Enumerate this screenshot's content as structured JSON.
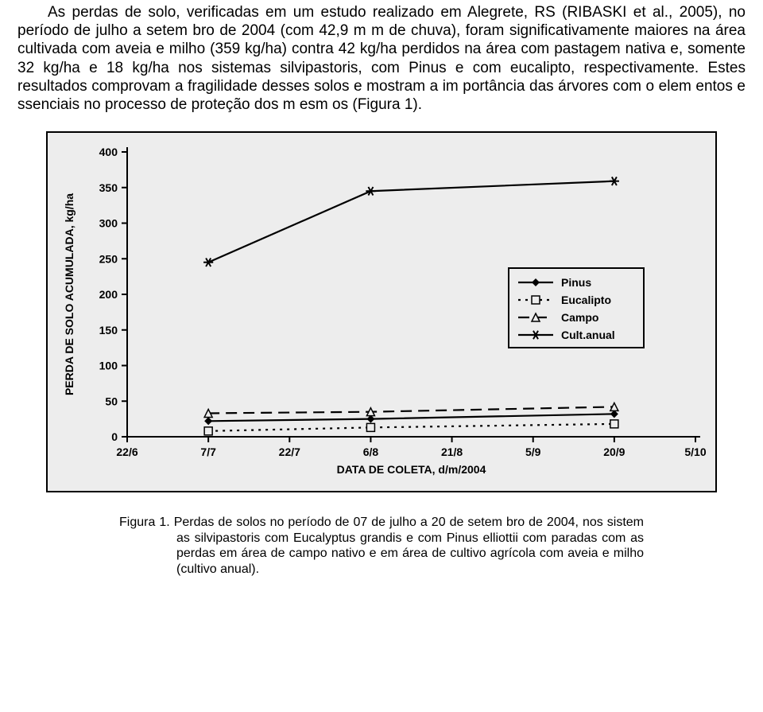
{
  "paragraph": "As perdas de solo, verificadas em um estudo realizado em Alegrete, RS (RIBASKI et al., 2005), no período de julho a setem bro de 2004 (com 42,9 m m de chuva), foram significativamente maiores na área cultivada com aveia e milho (359 kg/ha) contra 42 kg/ha perdidos na área com pastagem nativa e, somente 32 kg/ha e 18 kg/ha nos sistemas silvipastoris, com Pinus e com eucalipto, respectivamente. Estes resultados comprovam a fragilidade desses solos e mostram a im portância das árvores com o elem entos e ssenciais no processo de proteção dos m esm os (Figura 1).",
  "caption": "Figura 1. Perdas de solos no período de 07 de julho a 20 de setem bro de 2004, nos sistem as silvipastoris com Eucalyptus grandis e com Pinus elliottii com paradas com as perdas em área de campo nativo e em área de cultivo agrícola com aveia e milho (cultivo anual).",
  "chart": {
    "type": "line",
    "background_color": "#ededed",
    "border_color": "#000000",
    "axis_color": "#000000",
    "series_color": "#000000",
    "tick_label_fontsize": 14,
    "tick_label_weight": "bold",
    "axis_label_fontsize": 14,
    "axis_label_weight": "bold",
    "legend_fontsize": 14,
    "legend_weight": "bold",
    "y_axis_label": "PERDA DE SOLO ACUMULADA, kg/ha",
    "x_axis_label": "DATA DE COLETA, d/m/2004",
    "y_ticks": [
      0,
      50,
      100,
      150,
      200,
      250,
      300,
      350,
      400
    ],
    "x_categories": [
      "22/6",
      "7/7",
      "22/7",
      "6/8",
      "21/8",
      "5/9",
      "20/9",
      "5/10"
    ],
    "x_index_range": [
      1,
      6
    ],
    "series": [
      {
        "name": "Pinus",
        "label": "Pinus",
        "marker": "diamond",
        "dash": "solid",
        "points": [
          {
            "x": 1,
            "y": 22
          },
          {
            "x": 3,
            "y": 25
          },
          {
            "x": 6,
            "y": 32
          }
        ]
      },
      {
        "name": "Eucalipto",
        "label": "Eucalipto",
        "marker": "square-open",
        "dash": "dot",
        "points": [
          {
            "x": 1,
            "y": 8
          },
          {
            "x": 3,
            "y": 13
          },
          {
            "x": 6,
            "y": 18
          }
        ]
      },
      {
        "name": "Campo",
        "label": "Campo",
        "marker": "triangle-open",
        "dash": "longdash",
        "points": [
          {
            "x": 1,
            "y": 33
          },
          {
            "x": 3,
            "y": 35
          },
          {
            "x": 6,
            "y": 42
          }
        ]
      },
      {
        "name": "Cult.anual",
        "label": "Cult.anual",
        "marker": "asterisk",
        "dash": "solid",
        "points": [
          {
            "x": 1,
            "y": 245
          },
          {
            "x": 3,
            "y": 345
          },
          {
            "x": 6,
            "y": 359
          }
        ]
      }
    ],
    "legend": {
      "items": [
        "Pinus",
        "Eucalipto",
        "Campo",
        "Cult.anual"
      ]
    }
  }
}
